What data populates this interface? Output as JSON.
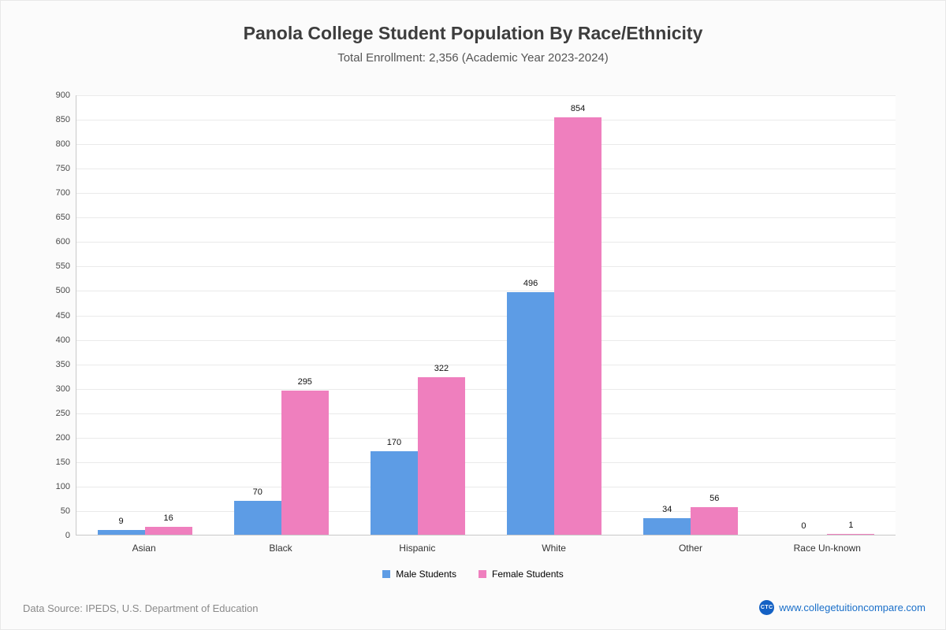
{
  "header": {
    "title": "Panola College Student Population By Race/Ethnicity",
    "subtitle": "Total Enrollment: 2,356 (Academic Year 2023-2024)"
  },
  "chart_data": {
    "type": "bar",
    "categories": [
      "Asian",
      "Black",
      "Hispanic",
      "White",
      "Other",
      "Race Un-known"
    ],
    "series": [
      {
        "name": "Male Students",
        "color": "#5d9ce5",
        "values": [
          9,
          70,
          170,
          496,
          34,
          0
        ]
      },
      {
        "name": "Female Students",
        "color": "#ef7fbe",
        "values": [
          16,
          295,
          322,
          854,
          56,
          1
        ]
      }
    ],
    "title": "Panola College Student Population By Race/Ethnicity",
    "xlabel": "",
    "ylabel": "",
    "ylim": [
      0,
      900
    ],
    "ytick_step": 50,
    "grid": true,
    "legend_position": "bottom"
  },
  "footer": {
    "source": "Data Source: IPEDS, U.S. Department of Education",
    "logo_text": "CTC",
    "website": "www.collegetuitioncompare.com"
  }
}
